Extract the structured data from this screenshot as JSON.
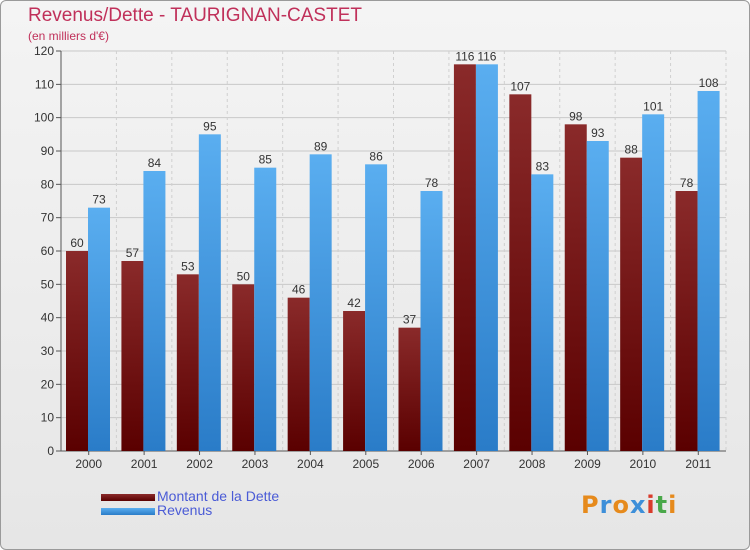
{
  "title": "Revenus/Dette - TAURIGNAN-CASTET",
  "subtitle": "(en milliers d'€)",
  "logo": {
    "text": "Proxiti",
    "letter_colors": [
      "#e68a1c",
      "#3d8fd9",
      "#e68a1c",
      "#3d8fd9",
      "#d93b2b",
      "#4aa84a",
      "#e68a1c"
    ]
  },
  "colors": {
    "debt_top": "#8a2a2a",
    "debt_bottom": "#5a0000",
    "revenue_top": "#5aaef0",
    "revenue_bottom": "#2a7cc8"
  },
  "chart_data": {
    "type": "bar",
    "title": "Revenus/Dette - TAURIGNAN-CASTET",
    "subtitle": "(en milliers d'€)",
    "xlabel": "",
    "ylabel": "",
    "ylim": [
      0,
      120
    ],
    "yticks": [
      0,
      10,
      20,
      30,
      40,
      50,
      60,
      70,
      80,
      90,
      100,
      110,
      120
    ],
    "grid": true,
    "legend_position": "bottom-left",
    "categories": [
      "2000",
      "2001",
      "2002",
      "2003",
      "2004",
      "2005",
      "2006",
      "2007",
      "2008",
      "2009",
      "2010",
      "2011"
    ],
    "series": [
      {
        "name": "Montant de la Dette",
        "color": "#7a1a1a",
        "values": [
          60,
          57,
          53,
          50,
          46,
          42,
          37,
          116,
          107,
          98,
          88,
          78
        ]
      },
      {
        "name": "Revenus",
        "color": "#3d95e0",
        "values": [
          73,
          84,
          95,
          85,
          89,
          86,
          78,
          116,
          83,
          93,
          101,
          108
        ]
      }
    ]
  }
}
